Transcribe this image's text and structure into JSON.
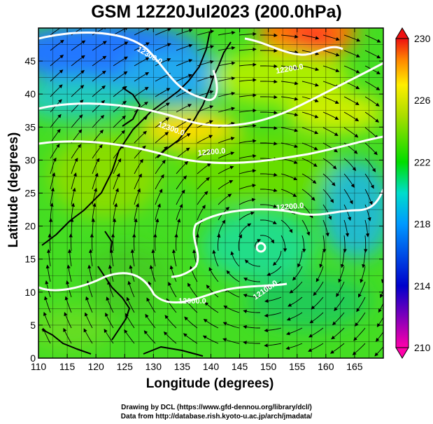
{
  "title": "GSM 12Z20Jul2023 (200.0hPa)",
  "x_axis": {
    "label": "Longitude (degrees)",
    "min": 110,
    "max": 170,
    "ticks": [
      110,
      115,
      120,
      125,
      130,
      135,
      140,
      145,
      150,
      155,
      160,
      165
    ]
  },
  "y_axis": {
    "label": "Latitude  (degrees)",
    "min": 0,
    "max": 50,
    "ticks": [
      0,
      5,
      10,
      15,
      20,
      25,
      30,
      35,
      40,
      45
    ]
  },
  "colorbar": {
    "min": 210,
    "max": 230,
    "tick_labels": [
      "230",
      "226",
      "222",
      "218",
      "214",
      "210"
    ],
    "stops": [
      "#ff00aa",
      "#0000cc",
      "#0099ff",
      "#00ddcc",
      "#00dd00",
      "#ffee00",
      "#ff8800",
      "#ee1111"
    ]
  },
  "contour_labels": [
    "12300.0",
    "12200.0",
    "12300.0",
    "12200.0",
    "12200.0",
    "12100.0",
    "12000.0"
  ],
  "credits": {
    "line1": "Drawing by DCL (https://www.gfd-dennou.org/library/dcl/)",
    "line2": "Data from http://database.rish.kyoto-u.ac.jp/arch/jmadata/"
  }
}
